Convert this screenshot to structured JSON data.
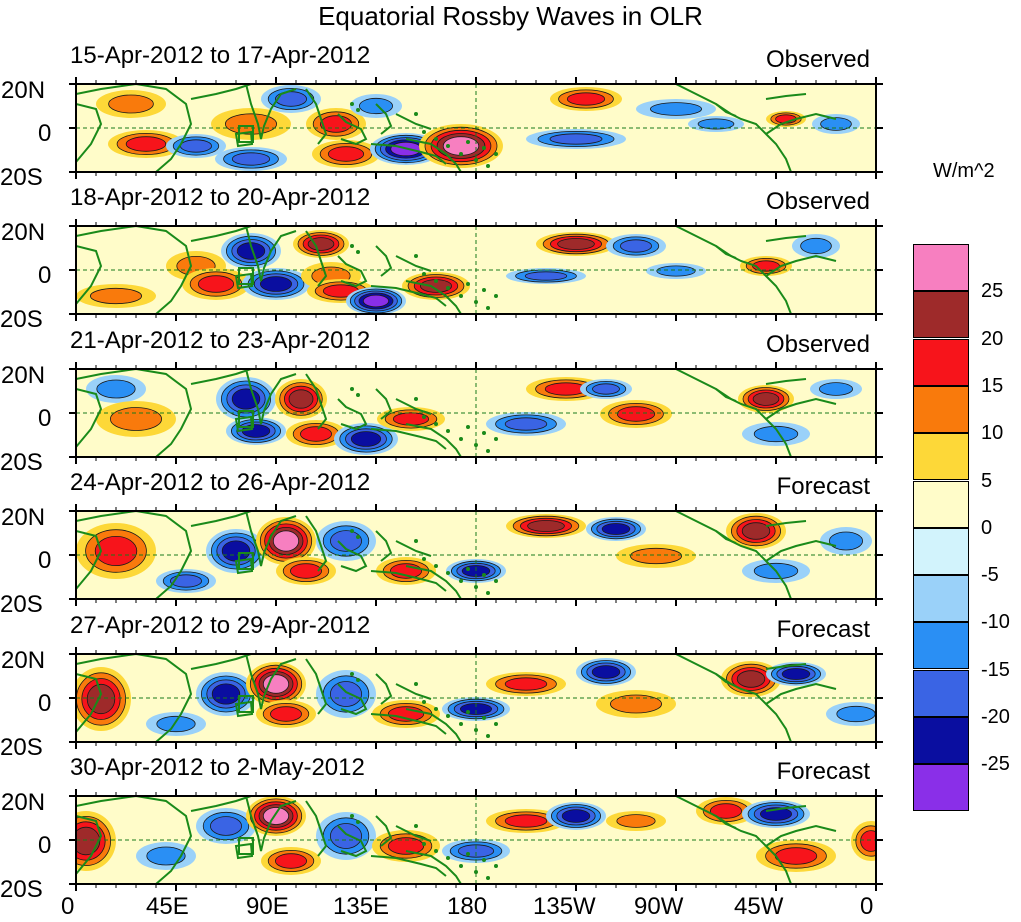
{
  "title": "Equatorial Rossby Waves in OLR",
  "lat_labels": {
    "north": "20N",
    "equator": "0",
    "south": "20S"
  },
  "lon_labels": [
    "0",
    "45E",
    "90E",
    "135E",
    "180",
    "135W",
    "90W",
    "45W",
    "0"
  ],
  "colorbar": {
    "units": "W/m^2",
    "labels": [
      "25",
      "20",
      "15",
      "10",
      "5",
      "0",
      "-5",
      "-10",
      "-15",
      "-20",
      "-25"
    ],
    "colors": [
      "#f77fc0",
      "#9e2a2a",
      "#f7141b",
      "#f97a0c",
      "#fdd838",
      "#fffcc9",
      "#d2f3fc",
      "#9ad1f9",
      "#2a8ff4",
      "#3a64e4",
      "#0a0ea0",
      "#8a2fe8"
    ]
  },
  "panels": [
    {
      "dates": "15-Apr-2012 to 17-Apr-2012",
      "status": "Observed"
    },
    {
      "dates": "18-Apr-2012 to 20-Apr-2012",
      "status": "Observed"
    },
    {
      "dates": "21-Apr-2012 to 23-Apr-2012",
      "status": "Observed"
    },
    {
      "dates": "24-Apr-2012 to 26-Apr-2012",
      "status": "Forecast"
    },
    {
      "dates": "27-Apr-2012 to 29-Apr-2012",
      "status": "Forecast"
    },
    {
      "dates": "30-Apr-2012 to 2-May-2012",
      "status": "Forecast"
    }
  ]
}
